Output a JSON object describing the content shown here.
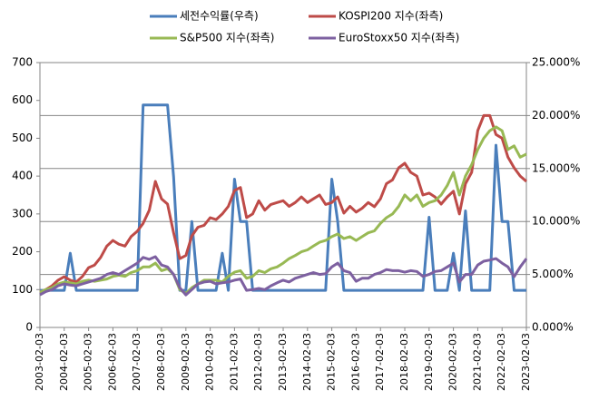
{
  "chart_data": {
    "type": "line",
    "x": [
      "2003-02-03",
      "2003-05-03",
      "2003-08-03",
      "2003-11-03",
      "2004-02-03",
      "2004-05-03",
      "2004-08-03",
      "2004-11-03",
      "2005-02-03",
      "2005-05-03",
      "2005-08-03",
      "2005-11-03",
      "2006-02-03",
      "2006-05-03",
      "2006-08-03",
      "2006-11-03",
      "2007-02-03",
      "2007-05-03",
      "2007-08-03",
      "2007-11-03",
      "2008-02-03",
      "2008-05-03",
      "2008-08-03",
      "2008-11-03",
      "2009-02-03",
      "2009-05-03",
      "2009-08-03",
      "2009-11-03",
      "2010-02-03",
      "2010-05-03",
      "2010-08-03",
      "2010-11-03",
      "2011-02-03",
      "2011-05-03",
      "2011-08-03",
      "2011-11-03",
      "2012-02-03",
      "2012-05-03",
      "2012-08-03",
      "2012-11-03",
      "2013-02-03",
      "2013-05-03",
      "2013-08-03",
      "2013-11-03",
      "2014-02-03",
      "2014-05-03",
      "2014-08-03",
      "2014-11-03",
      "2015-02-03",
      "2015-05-03",
      "2015-08-03",
      "2015-11-03",
      "2016-02-03",
      "2016-05-03",
      "2016-08-03",
      "2016-11-03",
      "2017-02-03",
      "2017-05-03",
      "2017-08-03",
      "2017-11-03",
      "2018-02-03",
      "2018-05-03",
      "2018-08-03",
      "2018-11-03",
      "2019-02-03",
      "2019-05-03",
      "2019-08-03",
      "2019-11-03",
      "2020-02-03",
      "2020-05-03",
      "2020-08-03",
      "2020-11-03",
      "2021-02-03",
      "2021-05-03",
      "2021-08-03",
      "2021-11-03",
      "2022-02-03",
      "2022-05-03",
      "2022-08-03",
      "2022-11-03",
      "2023-02-03"
    ],
    "xlim": [
      "2003-02-03",
      "2023-02-03"
    ],
    "xticks": [
      "2003-02-03",
      "2004-02-03",
      "2005-02-03",
      "2006-02-03",
      "2007-02-03",
      "2008-02-03",
      "2009-02-03",
      "2010-02-03",
      "2011-02-03",
      "2012-02-03",
      "2013-02-03",
      "2014-02-03",
      "2015-02-03",
      "2016-02-03",
      "2017-02-03",
      "2018-02-03",
      "2019-02-03",
      "2020-02-03",
      "2021-02-03",
      "2022-02-03",
      "2023-02-03"
    ],
    "ylim": [
      0,
      700
    ],
    "yticks": [
      0,
      100,
      200,
      300,
      400,
      500,
      600,
      700
    ],
    "y2lim": [
      0,
      25
    ],
    "y2ticks": [
      {
        "value": 0,
        "label": "0.000%"
      },
      {
        "value": 5,
        "label": "5.000%"
      },
      {
        "value": 10,
        "label": "10.000%"
      },
      {
        "value": 15,
        "label": "15.000%"
      },
      {
        "value": 20,
        "label": "20.000%"
      },
      {
        "value": 25,
        "label": "25.000%"
      }
    ],
    "grid": "y2",
    "series": [
      {
        "name": "세전수익률(우측)",
        "color": "#4a7ebb",
        "axis": "y2",
        "values": [
          3.5,
          3.5,
          3.5,
          3.5,
          3.5,
          7,
          3.5,
          3.5,
          3.5,
          3.5,
          3.5,
          3.5,
          3.5,
          3.5,
          3.5,
          3.5,
          3.5,
          21,
          21,
          21,
          21,
          21,
          14.2,
          3.5,
          3.5,
          10,
          3.5,
          3.5,
          3.5,
          3.5,
          7,
          3.5,
          14,
          10,
          10,
          3.5,
          3.5,
          3.5,
          3.5,
          3.5,
          3.5,
          3.5,
          3.5,
          3.5,
          3.5,
          3.5,
          3.5,
          3.5,
          14,
          10,
          3.5,
          3.5,
          3.5,
          3.5,
          3.5,
          3.5,
          3.5,
          3.5,
          3.5,
          3.5,
          3.5,
          3.5,
          3.5,
          3.5,
          10.4,
          3.5,
          3.5,
          3.5,
          7,
          3.5,
          11,
          3.5,
          3.5,
          3.5,
          3.5,
          17.2,
          10,
          10,
          3.5,
          3.5,
          3.5
        ]
      },
      {
        "name": "KOSPI200 지수(좌측)",
        "color": "#be4b48",
        "values": [
          93,
          100,
          110,
          125,
          134,
          125,
          120,
          135,
          158,
          165,
          185,
          215,
          230,
          220,
          215,
          240,
          254,
          275,
          310,
          386,
          340,
          326,
          250,
          182,
          190,
          242,
          265,
          270,
          290,
          285,
          300,
          320,
          362,
          370,
          290,
          300,
          335,
          310,
          325,
          330,
          335,
          320,
          330,
          345,
          330,
          340,
          350,
          325,
          330,
          345,
          302,
          320,
          305,
          315,
          330,
          319,
          340,
          380,
          390,
          422,
          434,
          410,
          400,
          350,
          355,
          345,
          326,
          345,
          360,
          300,
          380,
          410,
          520,
          560,
          560,
          510,
          500,
          450,
          422,
          400,
          386
        ]
      },
      {
        "name": "S&P500 지수(좌측)",
        "color": "#98b954",
        "values": [
          93,
          100,
          105,
          115,
          120,
          118,
          115,
          122,
          125,
          122,
          125,
          128,
          135,
          138,
          135,
          145,
          150,
          160,
          160,
          170,
          150,
          155,
          140,
          100,
          90,
          105,
          115,
          125,
          125,
          125,
          120,
          135,
          146,
          150,
          130,
          135,
          150,
          145,
          155,
          160,
          170,
          182,
          190,
          200,
          205,
          215,
          225,
          230,
          240,
          247,
          235,
          240,
          230,
          240,
          250,
          255,
          275,
          290,
          300,
          320,
          350,
          335,
          350,
          320,
          330,
          335,
          350,
          375,
          410,
          350,
          400,
          430,
          470,
          500,
          520,
          530,
          520,
          470,
          480,
          450,
          458
        ]
      },
      {
        "name": "EuroStoxx50 지수(좌측)",
        "color": "#7d60a0",
        "values": [
          86,
          95,
          100,
          110,
          115,
          112,
          110,
          115,
          120,
          125,
          130,
          140,
          145,
          140,
          150,
          160,
          170,
          185,
          180,
          187,
          165,
          160,
          140,
          105,
          86,
          100,
          115,
          120,
          122,
          115,
          118,
          120,
          125,
          128,
          98,
          100,
          103,
          100,
          110,
          118,
          125,
          120,
          130,
          135,
          140,
          145,
          140,
          142,
          160,
          170,
          150,
          145,
          122,
          130,
          130,
          140,
          145,
          153,
          150,
          150,
          146,
          150,
          148,
          135,
          140,
          148,
          150,
          160,
          170,
          120,
          140,
          140,
          165,
          175,
          178,
          182,
          170,
          160,
          134,
          160,
          182
        ]
      }
    ]
  }
}
